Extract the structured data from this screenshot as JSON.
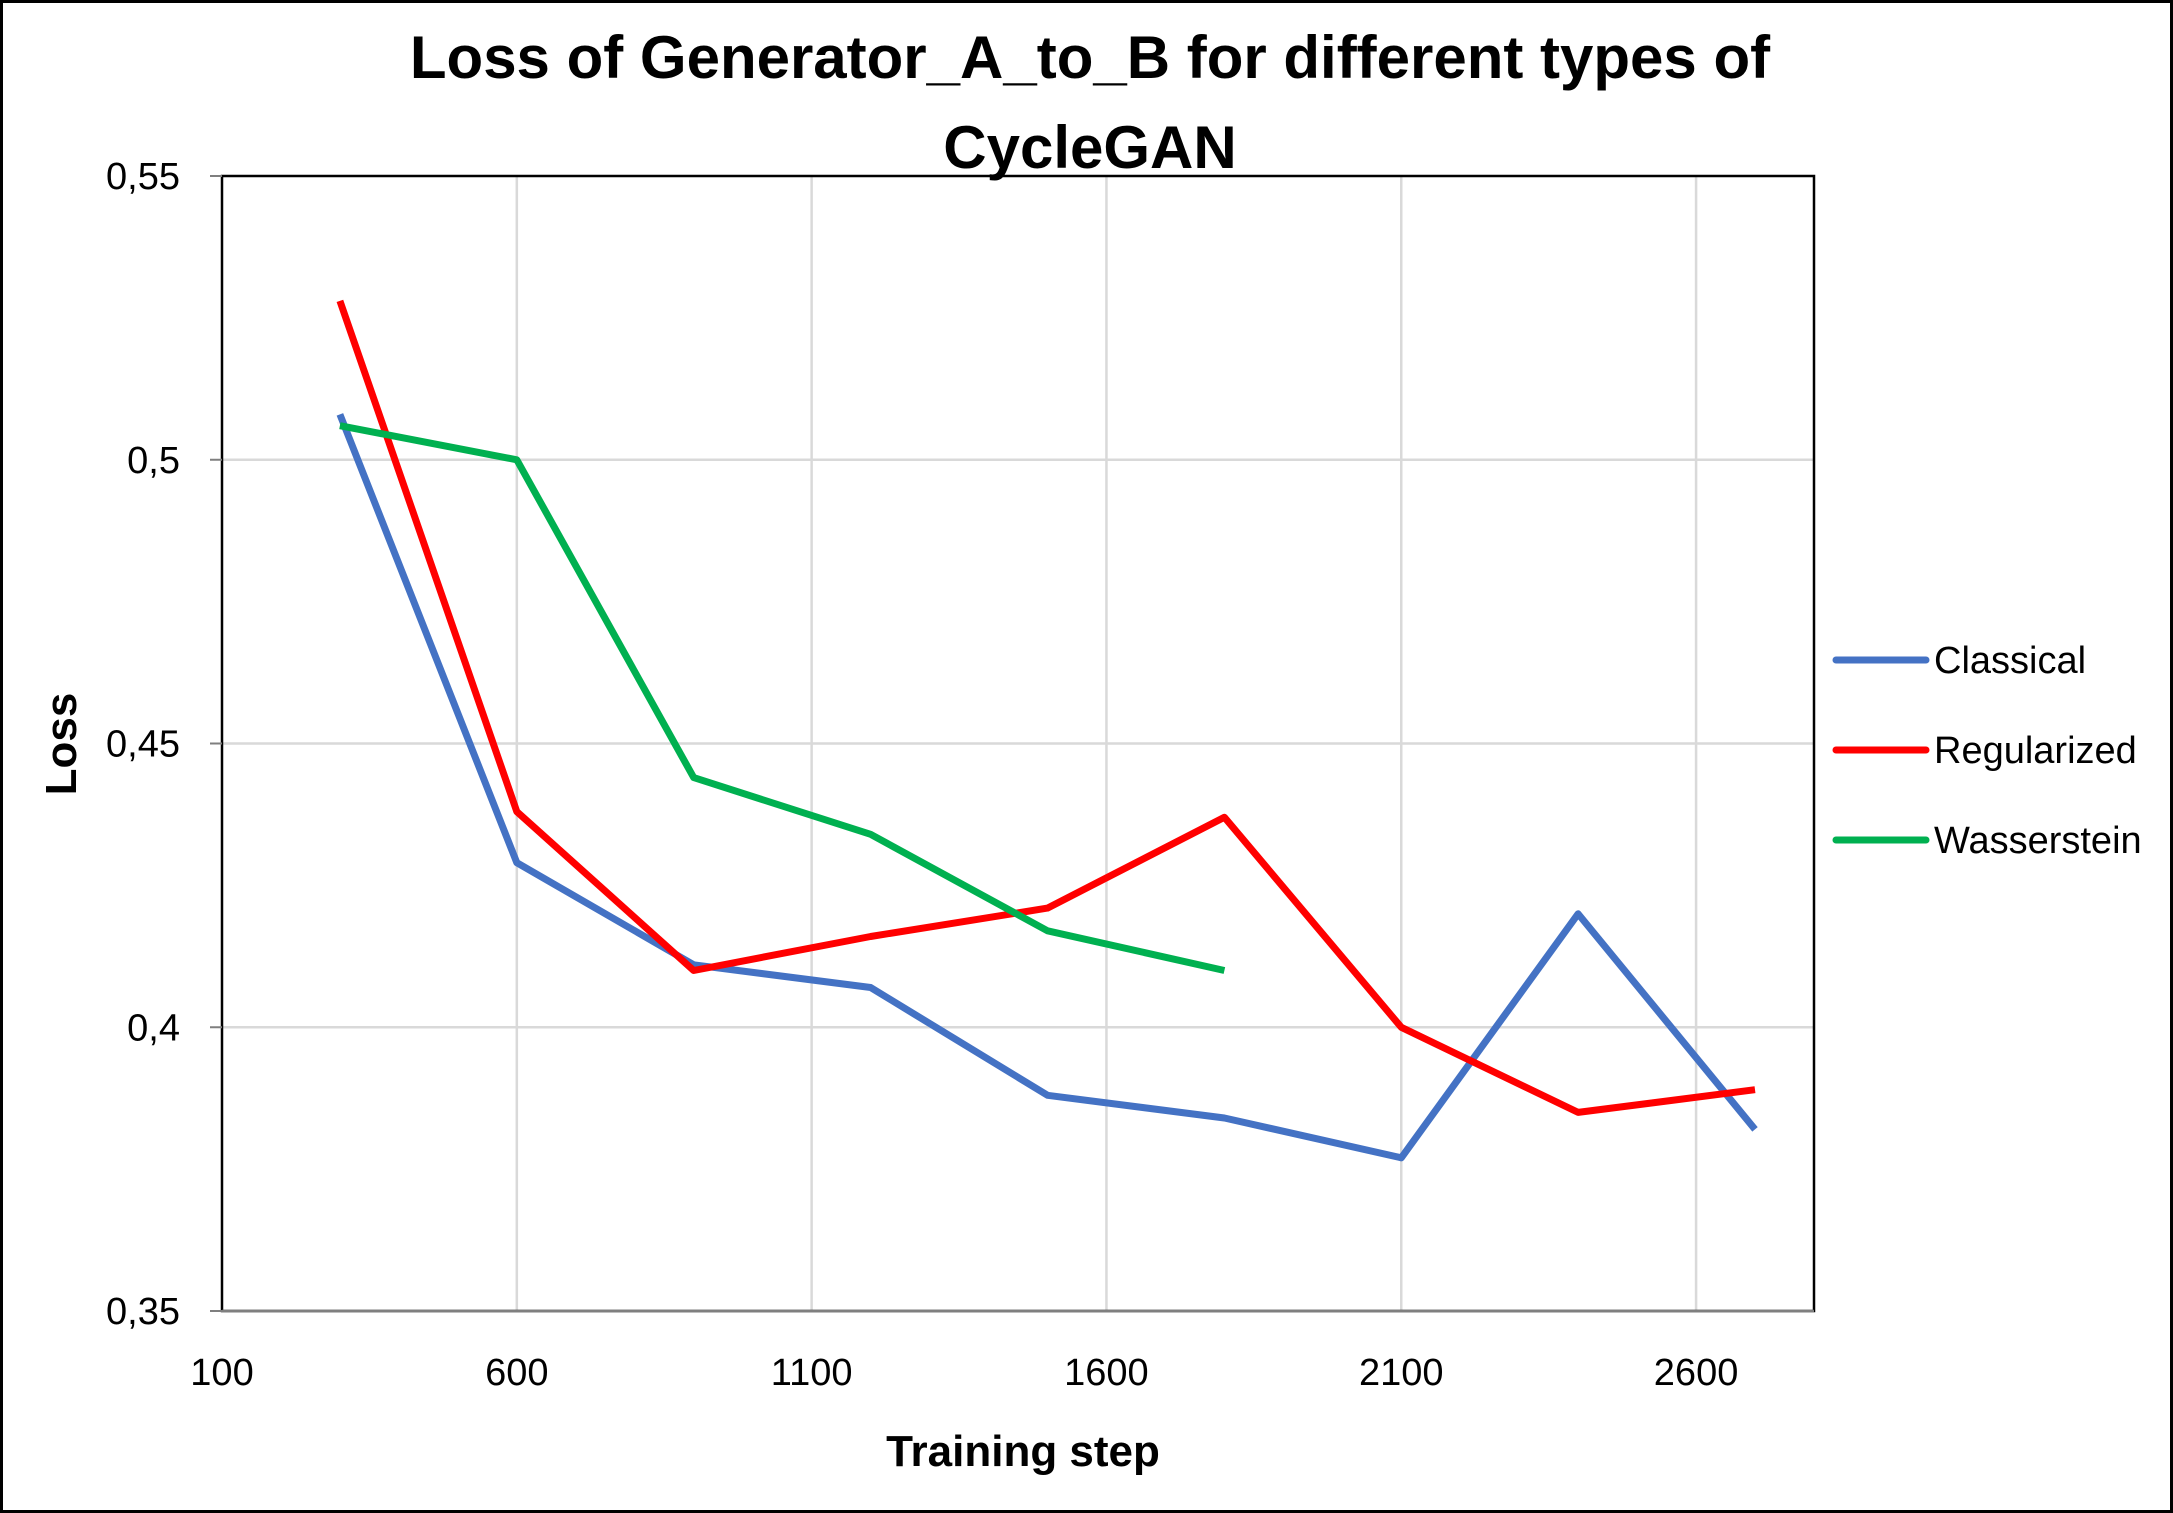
{
  "chart_data": {
    "type": "line",
    "title_lines": [
      "Loss of Generator_A_to_B for different types of",
      "CycleGAN"
    ],
    "xlabel": "Training step",
    "ylabel": "Loss",
    "xlim": [
      100,
      2800
    ],
    "ylim": [
      0.35,
      0.55
    ],
    "x_ticks": [
      100,
      600,
      1100,
      1600,
      2100,
      2600
    ],
    "x_tick_labels": [
      "100",
      "600",
      "1100",
      "1600",
      "2100",
      "2600"
    ],
    "y_ticks": [
      0.35,
      0.4,
      0.45,
      0.5,
      0.55
    ],
    "y_tick_labels": [
      "0,35",
      "0,4",
      "0,45",
      "0,5",
      "0,55"
    ],
    "grid": true,
    "legend_position": "right",
    "series": [
      {
        "name": "Classical",
        "color": "#4472c4",
        "x": [
          300,
          600,
          900,
          1200,
          1500,
          1800,
          2100,
          2400,
          2700
        ],
        "y": [
          0.508,
          0.429,
          0.411,
          0.407,
          0.388,
          0.384,
          0.377,
          0.42,
          0.382
        ]
      },
      {
        "name": "Regularized",
        "color": "#ff0000",
        "x": [
          300,
          600,
          900,
          1200,
          1500,
          1800,
          2100,
          2400,
          2700
        ],
        "y": [
          0.528,
          0.438,
          0.41,
          0.416,
          0.421,
          0.437,
          0.4,
          0.385,
          0.389
        ]
      },
      {
        "name": "Wasserstein",
        "color": "#00b050",
        "x": [
          300,
          600,
          900,
          1200,
          1500,
          1800
        ],
        "y": [
          0.506,
          0.5,
          0.444,
          0.434,
          0.417,
          0.41
        ]
      }
    ]
  }
}
